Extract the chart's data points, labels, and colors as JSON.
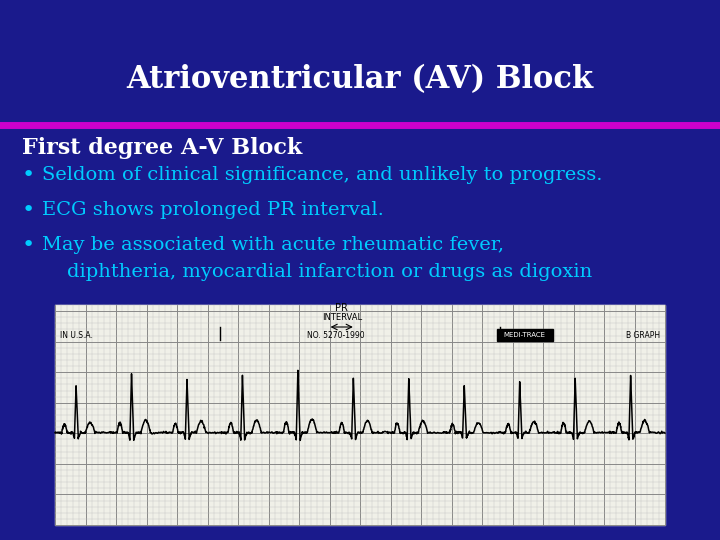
{
  "title": "Atrioventricular (AV) Block",
  "title_color": "#FFFFFF",
  "title_fontsize": 22,
  "background_color": "#1a1a8c",
  "divider_color": "#cc00cc",
  "subtitle": "First degree A-V Block",
  "subtitle_color": "#FFFFFF",
  "subtitle_fontsize": 16,
  "bullet_color": "#00ccff",
  "bullet_fontsize": 14,
  "bullets": [
    "Seldom of clinical significance, and unlikely to progress.",
    "ECG shows prolonged PR interval.",
    "May be associated with acute rheumatic fever,"
  ],
  "bullet3_line2": "    diphtheria, myocardial infarction or drugs as digoxin",
  "ecg_bg_color": "#f0f0e8",
  "ecg_grid_minor_color": "#aaaaaa",
  "ecg_grid_major_color": "#555555",
  "fig_width": 7.2,
  "fig_height": 5.4,
  "dpi": 100
}
